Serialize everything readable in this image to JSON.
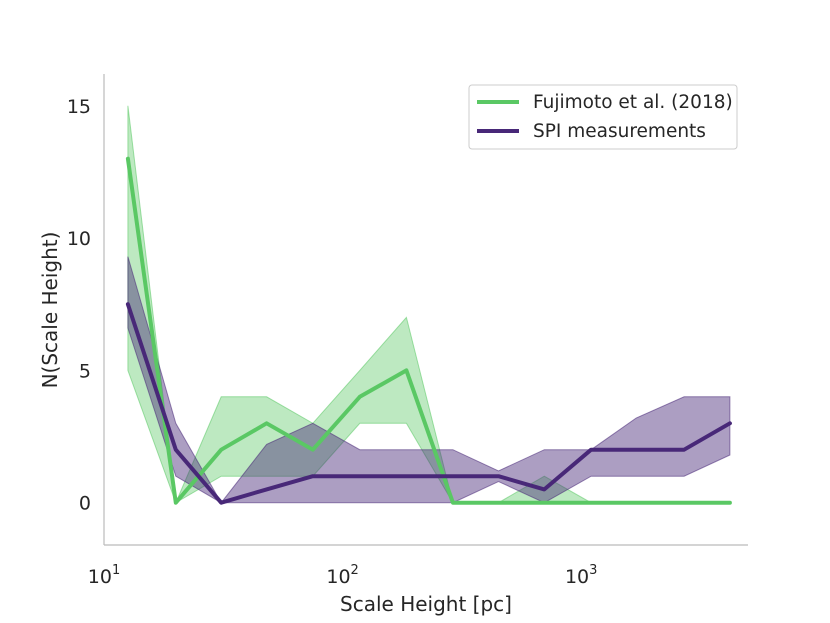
{
  "chart_data": {
    "type": "line",
    "xscale": "log",
    "xlim": [
      10,
      5000
    ],
    "ylim": [
      -1.6,
      16.2
    ],
    "xlabel": "Scale Height [pc]",
    "ylabel": "N(Scale Height)",
    "grid": false,
    "legend_position": "top-right",
    "x_ticks": [
      {
        "base": "10",
        "exp": "1",
        "value": 10
      },
      {
        "base": "10",
        "exp": "2",
        "value": 100
      },
      {
        "base": "10",
        "exp": "3",
        "value": 1000
      }
    ],
    "y_ticks": [
      {
        "label": "0",
        "value": 0
      },
      {
        "label": "5",
        "value": 5
      },
      {
        "label": "10",
        "value": 10
      },
      {
        "label": "15",
        "value": 15
      }
    ],
    "series": [
      {
        "name": "Fujimoto et al. (2018)",
        "color": "#5ac864",
        "band_opacity": 0.4,
        "points": [
          {
            "x": 12.6,
            "y": 13,
            "lo": 5,
            "hi": 15
          },
          {
            "x": 20,
            "y": 0,
            "lo": 0,
            "hi": 0
          },
          {
            "x": 31,
            "y": 2,
            "lo": 1,
            "hi": 4
          },
          {
            "x": 48,
            "y": 3,
            "lo": 1,
            "hi": 4
          },
          {
            "x": 75,
            "y": 2,
            "lo": 1,
            "hi": 3
          },
          {
            "x": 118,
            "y": 4,
            "lo": 3,
            "hi": 5
          },
          {
            "x": 185,
            "y": 5,
            "lo": 3,
            "hi": 7
          },
          {
            "x": 290,
            "y": 0,
            "lo": 0,
            "hi": 0
          },
          {
            "x": 450,
            "y": 0,
            "lo": 0,
            "hi": 0
          },
          {
            "x": 700,
            "y": 0,
            "lo": 0,
            "hi": 1
          },
          {
            "x": 1100,
            "y": 0,
            "lo": 0,
            "hi": 0
          },
          {
            "x": 1700,
            "y": 0,
            "lo": 0,
            "hi": 0
          },
          {
            "x": 2700,
            "y": 0,
            "lo": 0,
            "hi": 0
          },
          {
            "x": 4200,
            "y": 0,
            "lo": 0,
            "hi": 0
          }
        ]
      },
      {
        "name": "SPI measurements",
        "color": "#482878",
        "band_opacity": 0.45,
        "points": [
          {
            "x": 12.6,
            "y": 7.5,
            "lo": 6.6,
            "hi": 9.3
          },
          {
            "x": 20,
            "y": 2,
            "lo": 1,
            "hi": 3
          },
          {
            "x": 31,
            "y": 0,
            "lo": 0,
            "hi": 0
          },
          {
            "x": 48,
            "y": 0.5,
            "lo": 0,
            "hi": 2.2
          },
          {
            "x": 75,
            "y": 1,
            "lo": 0,
            "hi": 3
          },
          {
            "x": 118,
            "y": 1,
            "lo": 0,
            "hi": 2
          },
          {
            "x": 185,
            "y": 1,
            "lo": 0,
            "hi": 2
          },
          {
            "x": 290,
            "y": 1,
            "lo": 0,
            "hi": 2
          },
          {
            "x": 450,
            "y": 1,
            "lo": 0.8,
            "hi": 1.2
          },
          {
            "x": 700,
            "y": 0.5,
            "lo": 0,
            "hi": 2
          },
          {
            "x": 1100,
            "y": 2,
            "lo": 1,
            "hi": 2
          },
          {
            "x": 1700,
            "y": 2,
            "lo": 1,
            "hi": 3.2
          },
          {
            "x": 2700,
            "y": 2,
            "lo": 1,
            "hi": 4
          },
          {
            "x": 4200,
            "y": 3,
            "lo": 1.8,
            "hi": 4
          }
        ]
      }
    ]
  }
}
